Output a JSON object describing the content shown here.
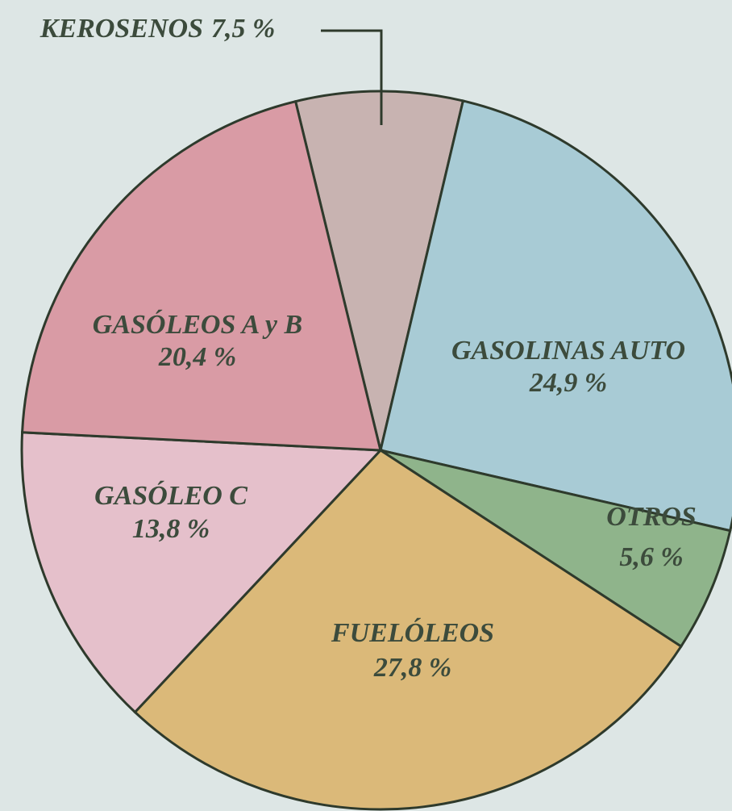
{
  "chart_data": {
    "type": "pie",
    "categories": [
      "KEROSENOS",
      "GASOLINAS AUTO",
      "OTROS",
      "FUELÓLEOS",
      "GASÓLEO C",
      "GASÓLEOS A y B"
    ],
    "values": [
      7.5,
      24.9,
      5.6,
      27.8,
      13.8,
      20.4
    ],
    "value_labels": [
      "7,5 %",
      "24,9 %",
      "5,6 %",
      "27,8 %",
      "13,8 %",
      "20,4 %"
    ],
    "colors": [
      "#c8b3b1",
      "#a8cbd5",
      "#8fb48b",
      "#dbb979",
      "#e5c0cb",
      "#d99ba5"
    ]
  }
}
